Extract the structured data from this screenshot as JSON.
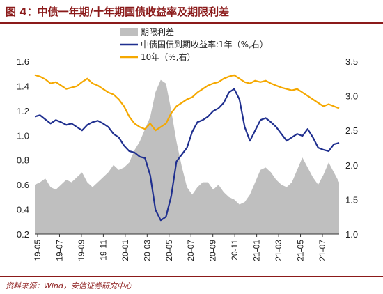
{
  "title": "图 4：中债一年期/十年期国债收益率及期限利差",
  "source": "资料来源：Wind，安信证券研究中心",
  "colors": {
    "spread": "#bfbfbf",
    "y1": "#1f2f8f",
    "y10": "#f5a800",
    "title": "#8b1a1a"
  },
  "chart_data": {
    "type": "line",
    "title": "图 4：中债一年期/十年期国债收益率及期限利差",
    "x_tick_labels": [
      "19-05",
      "19-07",
      "19-09",
      "19-11",
      "20-01",
      "20-03",
      "20-05",
      "20-07",
      "20-09",
      "20-11",
      "21-01",
      "21-03",
      "21-05",
      "21-07"
    ],
    "left_axis": {
      "ylim": [
        0.2,
        1.6
      ],
      "ticks": [
        "0.2",
        "0.4",
        "0.6",
        "0.8",
        "1.0",
        "1.2",
        "1.4",
        "1.6"
      ]
    },
    "right_axis": {
      "ylim": [
        1.0,
        3.5
      ],
      "ticks": [
        "1.0",
        "1.5",
        "2.0",
        "2.5",
        "3.0",
        "3.5"
      ]
    },
    "legend_placement": "top-center",
    "series": [
      {
        "name": "期限利差",
        "type": "area",
        "axis": "left",
        "x": [
          0,
          2,
          4,
          6,
          8,
          10,
          12,
          14,
          16,
          18,
          20,
          22,
          24,
          26,
          28,
          30,
          32,
          34,
          36,
          38,
          40,
          42,
          44,
          46,
          48,
          50,
          52,
          54,
          56,
          58,
          60,
          62,
          64,
          66,
          68,
          70,
          72,
          74,
          76,
          78,
          80,
          82,
          84,
          86,
          88,
          90,
          92,
          94,
          96,
          98,
          100,
          102,
          104,
          106,
          108,
          110,
          112,
          114,
          116
        ],
        "values": [
          0.6,
          0.62,
          0.65,
          0.58,
          0.56,
          0.6,
          0.64,
          0.62,
          0.66,
          0.7,
          0.62,
          0.58,
          0.62,
          0.66,
          0.7,
          0.76,
          0.72,
          0.74,
          0.78,
          0.88,
          0.95,
          1.05,
          1.15,
          1.35,
          1.45,
          1.42,
          1.2,
          0.95,
          0.75,
          0.58,
          0.52,
          0.58,
          0.62,
          0.62,
          0.56,
          0.6,
          0.54,
          0.5,
          0.48,
          0.44,
          0.46,
          0.52,
          0.62,
          0.72,
          0.74,
          0.7,
          0.64,
          0.6,
          0.58,
          0.62,
          0.72,
          0.82,
          0.74,
          0.66,
          0.6,
          0.68,
          0.78,
          0.7,
          0.62
        ]
      },
      {
        "name": "中债国债到期收益率:1年（%,右）",
        "type": "line",
        "axis": "right",
        "x": [
          0,
          2,
          4,
          6,
          8,
          10,
          12,
          14,
          16,
          18,
          20,
          22,
          24,
          26,
          28,
          30,
          32,
          34,
          36,
          38,
          40,
          42,
          44,
          46,
          48,
          50,
          52,
          54,
          56,
          58,
          60,
          62,
          64,
          66,
          68,
          70,
          72,
          74,
          76,
          78,
          80,
          82,
          84,
          86,
          88,
          90,
          92,
          94,
          96,
          98,
          100,
          102,
          104,
          106,
          108,
          110,
          112,
          114,
          116
        ],
        "values": [
          2.7,
          2.72,
          2.66,
          2.6,
          2.65,
          2.62,
          2.58,
          2.6,
          2.55,
          2.5,
          2.58,
          2.62,
          2.64,
          2.6,
          2.55,
          2.45,
          2.4,
          2.28,
          2.2,
          2.18,
          2.12,
          2.1,
          1.85,
          1.35,
          1.2,
          1.25,
          1.55,
          2.05,
          2.15,
          2.25,
          2.48,
          2.62,
          2.65,
          2.7,
          2.78,
          2.82,
          2.9,
          3.05,
          3.1,
          2.95,
          2.55,
          2.35,
          2.5,
          2.65,
          2.68,
          2.62,
          2.55,
          2.45,
          2.35,
          2.4,
          2.45,
          2.42,
          2.52,
          2.4,
          2.25,
          2.22,
          2.2,
          2.3,
          2.32
        ]
      },
      {
        "name": "10年（%,右）",
        "type": "line",
        "axis": "right",
        "x": [
          0,
          2,
          4,
          6,
          8,
          10,
          12,
          14,
          16,
          18,
          20,
          22,
          24,
          26,
          28,
          30,
          32,
          34,
          36,
          38,
          40,
          42,
          44,
          46,
          48,
          50,
          52,
          54,
          56,
          58,
          60,
          62,
          64,
          66,
          68,
          70,
          72,
          74,
          76,
          78,
          80,
          82,
          84,
          86,
          88,
          90,
          92,
          94,
          96,
          98,
          100,
          102,
          104,
          106,
          108,
          110,
          112,
          114,
          116
        ],
        "values": [
          3.3,
          3.28,
          3.24,
          3.18,
          3.2,
          3.15,
          3.1,
          3.12,
          3.14,
          3.2,
          3.25,
          3.18,
          3.15,
          3.1,
          3.05,
          3.02,
          2.95,
          2.85,
          2.7,
          2.6,
          2.55,
          2.52,
          2.6,
          2.5,
          2.55,
          2.6,
          2.75,
          2.85,
          2.9,
          2.95,
          2.98,
          3.05,
          3.1,
          3.15,
          3.18,
          3.2,
          3.25,
          3.28,
          3.3,
          3.25,
          3.2,
          3.18,
          3.22,
          3.2,
          3.22,
          3.18,
          3.15,
          3.12,
          3.1,
          3.08,
          3.1,
          3.05,
          3.0,
          2.95,
          2.9,
          2.85,
          2.88,
          2.85,
          2.82
        ]
      }
    ]
  }
}
